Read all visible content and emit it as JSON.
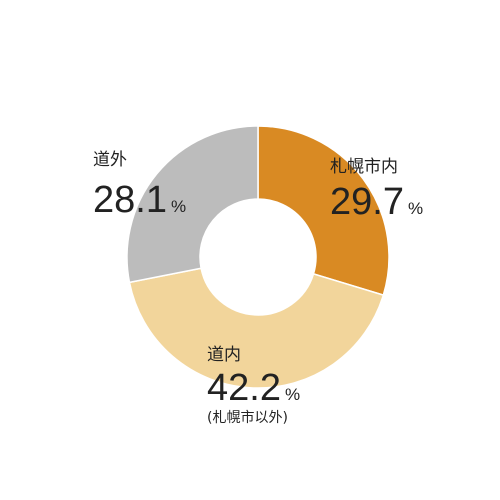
{
  "chart_data": {
    "type": "donut",
    "categories": [
      "札幌市内",
      "道内",
      "道外"
    ],
    "values": [
      29.7,
      42.2,
      28.1
    ],
    "unit": "%",
    "colors": [
      "#d98a23",
      "#f2d59b",
      "#bcbcbc"
    ],
    "annotations": [
      {
        "category": 1,
        "text": "(札幌市以外)"
      }
    ]
  }
}
